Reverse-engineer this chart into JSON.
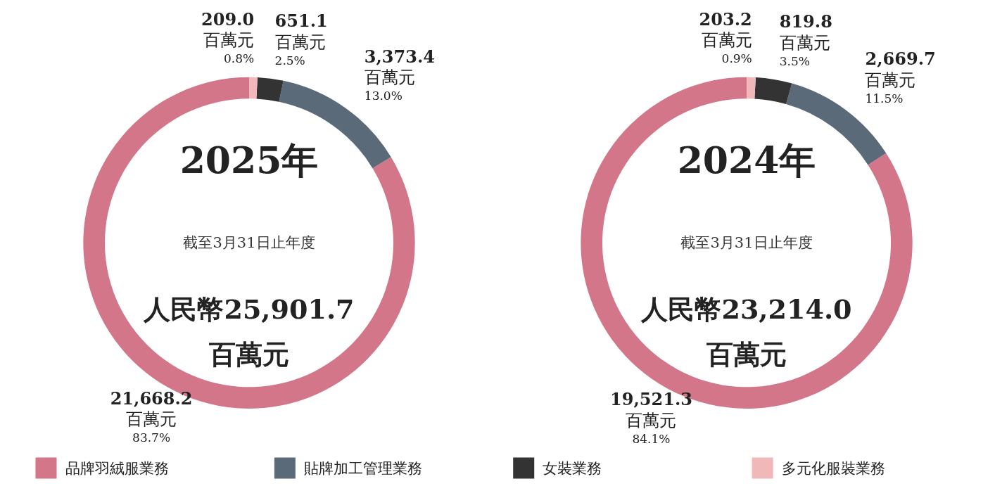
{
  "chart_data": [
    {
      "type": "donut",
      "title": "2025年",
      "subtitle": "截至3月31日止年度",
      "annotations": [
        "人民幣25,901.7\n百萬元"
      ],
      "categories": [
        "品牌羽絨服業務",
        "貼牌加工管理業務",
        "女裝業務",
        "多元化服裝業務"
      ],
      "values": [
        21668.2,
        3373.4,
        651.1,
        209.0
      ],
      "colors": [
        "#d4768a",
        "#5a6a78",
        "#333333",
        "#f0b8b8"
      ],
      "value_labels": [
        "21,668.2\n百萬元\n83.7%",
        "3,373.4\n百萬元\n13.0%",
        "651.1\n百萬元\n2.5%",
        "209.0\n百萬元\n0.8%"
      ],
      "legend": "bottom"
    },
    {
      "type": "donut",
      "title": "2024年",
      "subtitle": "截至3月31日止年度",
      "annotations": [
        "人民幣23,214.0\n百萬元"
      ],
      "categories": [
        null,
        null,
        null,
        null
      ],
      "values": [
        19521.3,
        2669.7,
        819.8,
        203.2
      ],
      "colors": [
        "#d4768a",
        "#5a6a78",
        "#333333",
        "#f0b8b8"
      ],
      "value_labels": [
        "19,521.3\n百萬元\n84.1%",
        "2,669.7\n百萬元\n11.5%",
        "819.8\n百萬元\n3.5%",
        "203.2\n百萬元\n0.9%"
      ]
    }
  ]
}
